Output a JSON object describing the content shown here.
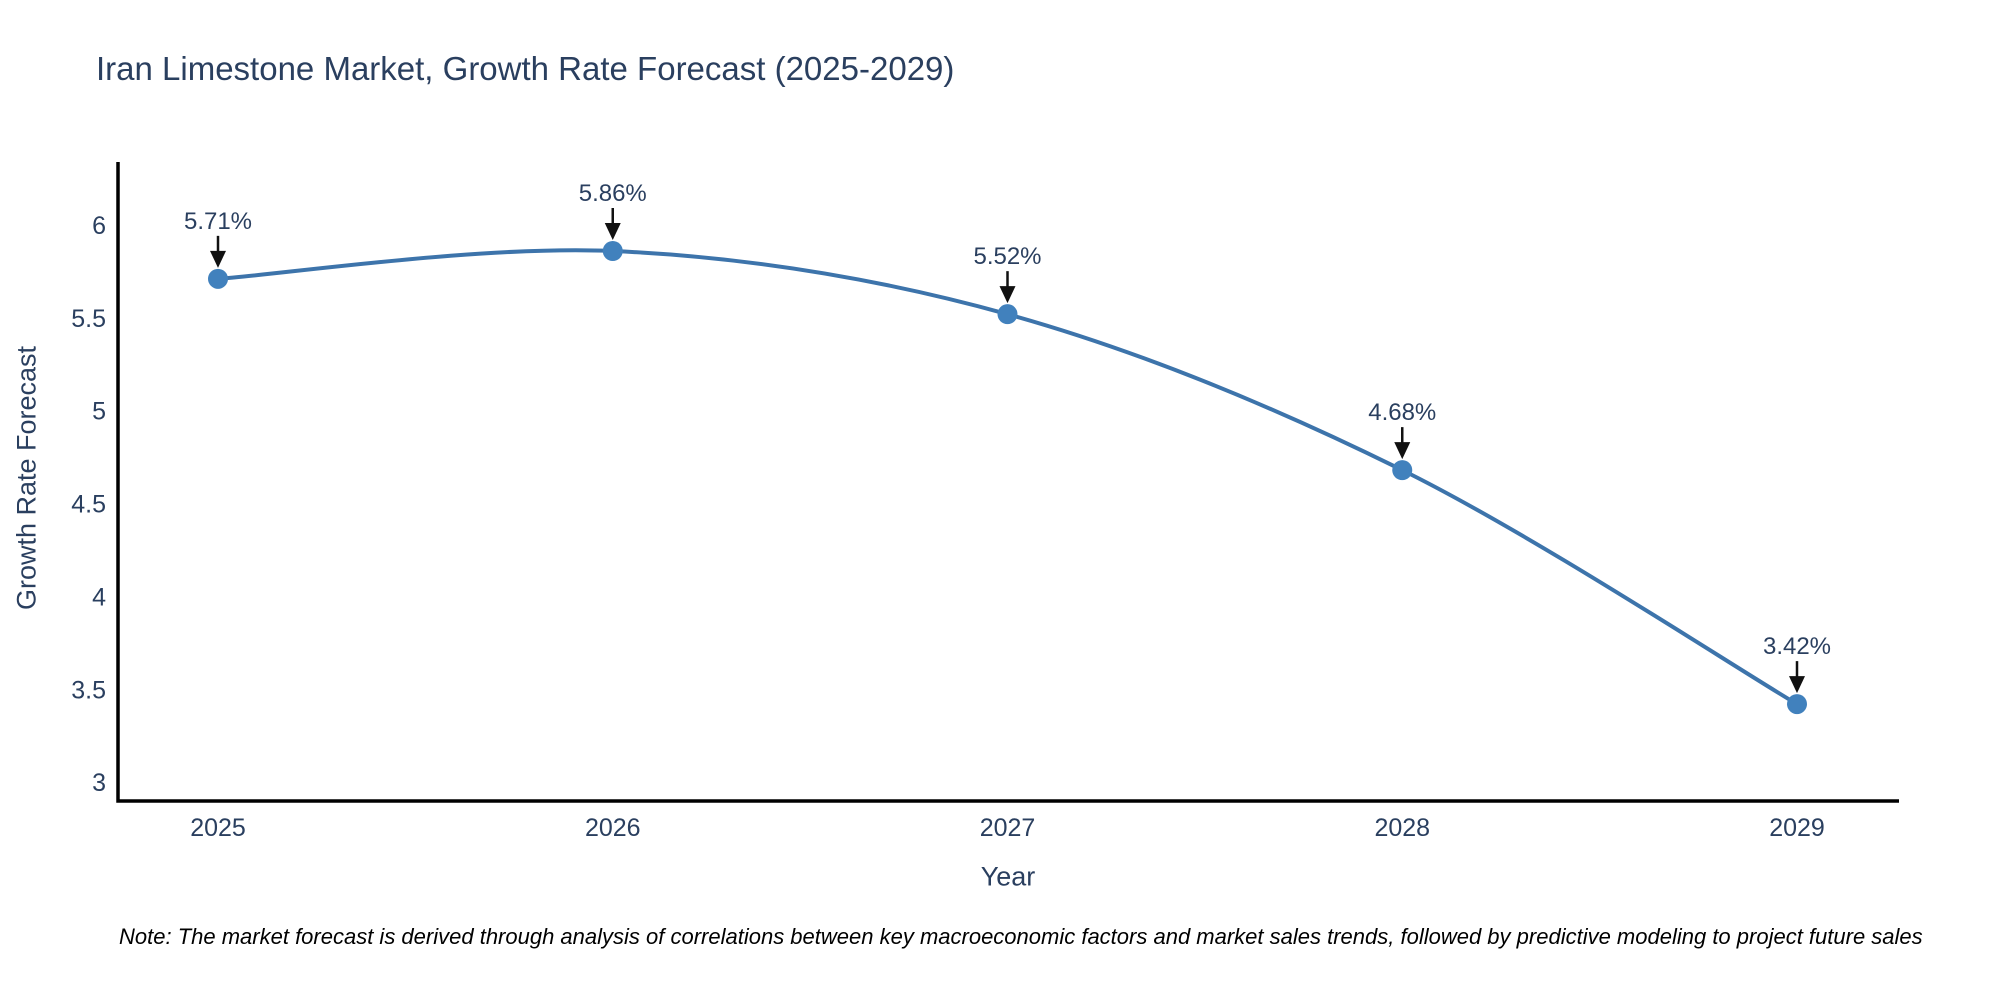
{
  "note": "Note: The market forecast is derived through analysis of correlations between key macroeconomic factors and market sales trends, followed by predictive modeling to project future sales",
  "chart_data": {
    "type": "line",
    "title": "Iran Limestone Market, Growth Rate Forecast (2025-2029)",
    "xlabel": "Year",
    "ylabel": "Growth Rate Forecast",
    "x": [
      "2025",
      "2026",
      "2027",
      "2028",
      "2029"
    ],
    "series": [
      {
        "name": "Growth Rate Forecast",
        "values": [
          5.71,
          5.86,
          5.52,
          4.68,
          3.42
        ]
      }
    ],
    "point_labels": [
      "5.71%",
      "5.86%",
      "5.52%",
      "4.68%",
      "3.42%"
    ],
    "yticks": [
      3,
      3.5,
      4,
      4.5,
      5,
      5.5,
      6
    ],
    "ylim": [
      2.89,
      6.34
    ],
    "grid": false,
    "legend": "none",
    "line_shape": "spline",
    "annotation_style": "black-down-arrow",
    "colors": {
      "line": "#3d74ab",
      "marker": "#4181bd",
      "axis": "#000000",
      "text": "#2a3f5f",
      "arrow": "#111111",
      "background": "#ffffff"
    }
  }
}
